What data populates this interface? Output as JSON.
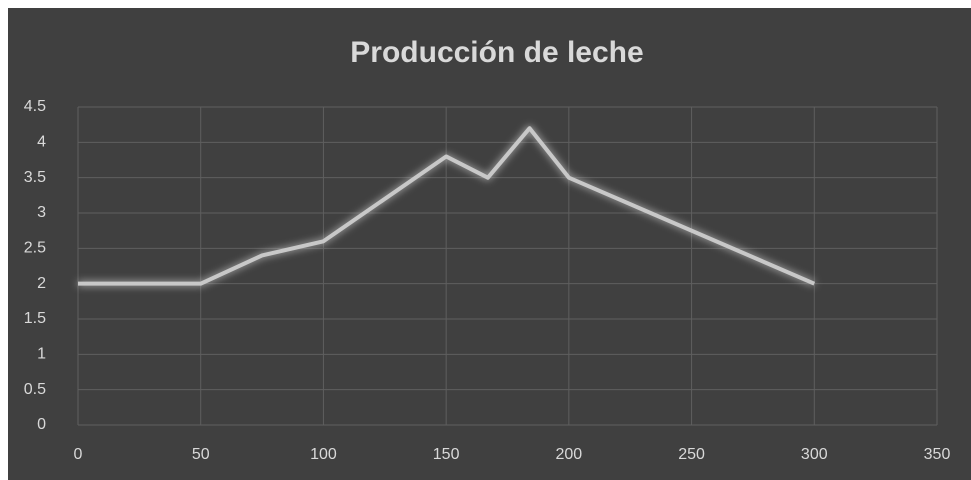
{
  "chart_data": {
    "type": "line",
    "title": "Producción de leche",
    "x": [
      0,
      50,
      75,
      100,
      150,
      167,
      184,
      200,
      300
    ],
    "series": [
      {
        "color": "#c8c8c8",
        "values": [
          2,
          2,
          2.4,
          2.6,
          3.8,
          3.5,
          4.2,
          3.5,
          2
        ]
      }
    ],
    "xlim": [
      0,
      350
    ],
    "xticks": [
      0,
      50,
      100,
      150,
      200,
      250,
      300,
      350
    ],
    "ylim": [
      0,
      4.5
    ],
    "yticks": [
      0,
      0.5,
      1,
      1.5,
      2,
      2.5,
      3,
      3.5,
      4,
      4.5
    ],
    "grid": true
  }
}
